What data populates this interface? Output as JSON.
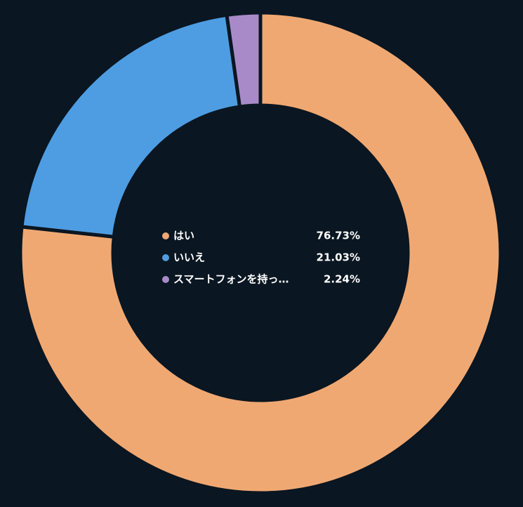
{
  "chart_data": {
    "type": "donut",
    "categories": [
      "はい",
      "いいえ",
      "スマートフォンを持っ…"
    ],
    "values": [
      76.73,
      21.03,
      2.24
    ],
    "value_labels": [
      "76.73%",
      "21.03%",
      "2.24%"
    ],
    "colors": [
      "#f0a872",
      "#4e9de2",
      "#a98ac8"
    ]
  }
}
